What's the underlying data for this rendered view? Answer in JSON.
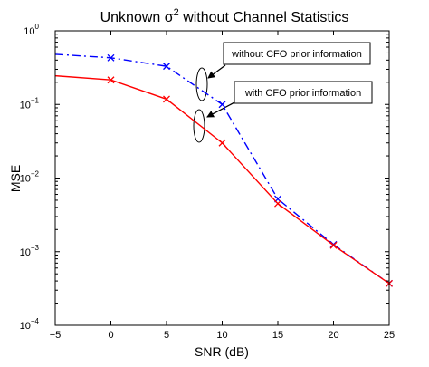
{
  "chart_data": {
    "type": "line",
    "title_prefix": "Unknown ",
    "title_symbol": "σ",
    "title_superscript": "2",
    "title_suffix": " without Channel Statistics",
    "xlabel": "SNR (dB)",
    "ylabel": "MSE",
    "x_scale": "linear",
    "y_scale": "log",
    "xlim": [
      -5,
      25
    ],
    "ylim": [
      0.0001,
      1
    ],
    "x_ticks": [
      -5,
      0,
      5,
      10,
      15,
      20,
      25
    ],
    "x_tick_labels": [
      "−5",
      "0",
      "5",
      "10",
      "15",
      "20",
      "25"
    ],
    "y_ticks": [
      0.0001,
      0.001,
      0.01,
      0.1,
      1
    ],
    "y_tick_mantissa": [
      "10",
      "10",
      "10",
      "10",
      "10"
    ],
    "y_tick_exponents": [
      "−4",
      "−3",
      "−2",
      "−1",
      "0"
    ],
    "grid": false,
    "series": [
      {
        "color": "#0000ff",
        "line_style": "dash-dot",
        "marker": "x",
        "points": [
          {
            "x": -5,
            "y": 0.48,
            "marker": false
          },
          {
            "x": 0,
            "y": 0.43,
            "marker": true
          },
          {
            "x": 5,
            "y": 0.33,
            "marker": true
          },
          {
            "x": 10,
            "y": 0.1,
            "marker": true
          },
          {
            "x": 15,
            "y": 0.0052,
            "marker": true
          },
          {
            "x": 20,
            "y": 0.00125,
            "marker": true
          },
          {
            "x": 25,
            "y": 0.00037,
            "marker": true
          }
        ]
      },
      {
        "color": "#ff0000",
        "line_style": "solid",
        "marker": "x",
        "points": [
          {
            "x": -5,
            "y": 0.245,
            "marker": false
          },
          {
            "x": 0,
            "y": 0.215,
            "marker": true
          },
          {
            "x": 5,
            "y": 0.118,
            "marker": true
          },
          {
            "x": 10,
            "y": 0.03,
            "marker": true
          },
          {
            "x": 15,
            "y": 0.0045,
            "marker": true
          },
          {
            "x": 20,
            "y": 0.00122,
            "marker": true
          },
          {
            "x": 25,
            "y": 0.00037,
            "marker": true
          }
        ]
      }
    ],
    "annotations": [
      {
        "text": "without CFO prior information",
        "target_x": 8.0,
        "target_y": 0.18
      },
      {
        "text": "with CFO prior information",
        "target_x": 8.0,
        "target_y": 0.052
      }
    ]
  }
}
